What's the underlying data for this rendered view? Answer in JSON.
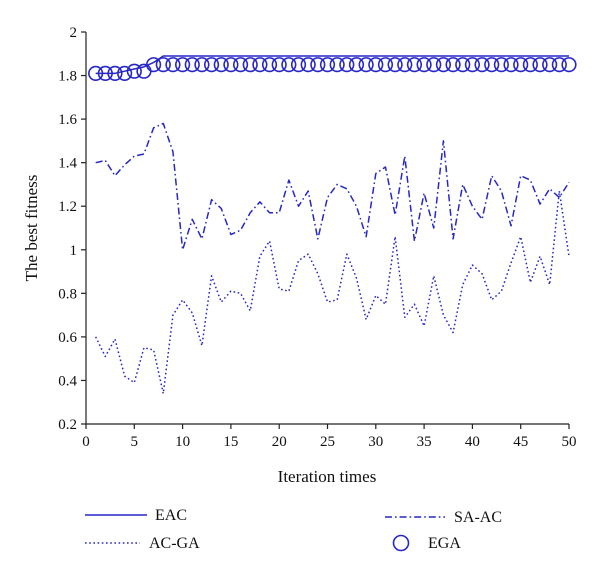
{
  "chart_data": {
    "type": "line",
    "xlabel": "Iteration times",
    "ylabel": "The best fitness",
    "xlim": [
      0,
      50
    ],
    "ylim": [
      0.2,
      2
    ],
    "xticks": [
      0,
      5,
      10,
      15,
      20,
      25,
      30,
      35,
      40,
      45,
      50
    ],
    "yticks": [
      0.2,
      0.4,
      0.6,
      0.8,
      1,
      1.2,
      1.4,
      1.6,
      1.8,
      2
    ],
    "grid": false,
    "legend_position": "bottom",
    "color": "#2727c8",
    "x": [
      1,
      2,
      3,
      4,
      5,
      6,
      7,
      8,
      9,
      10,
      11,
      12,
      13,
      14,
      15,
      16,
      17,
      18,
      19,
      20,
      21,
      22,
      23,
      24,
      25,
      26,
      27,
      28,
      29,
      30,
      31,
      32,
      33,
      34,
      35,
      36,
      37,
      38,
      39,
      40,
      41,
      42,
      43,
      44,
      45,
      46,
      47,
      48,
      49,
      50
    ],
    "series": [
      {
        "name": "EAC",
        "style": "solid",
        "values": [
          1.81,
          1.81,
          1.81,
          1.82,
          1.83,
          1.84,
          1.86,
          1.89,
          1.89,
          1.89,
          1.89,
          1.89,
          1.89,
          1.89,
          1.89,
          1.89,
          1.89,
          1.89,
          1.89,
          1.89,
          1.89,
          1.89,
          1.89,
          1.89,
          1.89,
          1.89,
          1.89,
          1.89,
          1.89,
          1.89,
          1.89,
          1.89,
          1.89,
          1.89,
          1.89,
          1.89,
          1.89,
          1.89,
          1.89,
          1.89,
          1.89,
          1.89,
          1.89,
          1.89,
          1.89,
          1.89,
          1.89,
          1.89,
          1.89,
          1.89
        ]
      },
      {
        "name": "SA-AC",
        "style": "dashdot",
        "values": [
          1.4,
          1.41,
          1.34,
          1.39,
          1.43,
          1.44,
          1.56,
          1.58,
          1.45,
          1.0,
          1.14,
          1.05,
          1.23,
          1.19,
          1.07,
          1.09,
          1.17,
          1.22,
          1.17,
          1.17,
          1.32,
          1.2,
          1.27,
          1.05,
          1.24,
          1.3,
          1.28,
          1.2,
          1.06,
          1.35,
          1.38,
          1.16,
          1.43,
          1.04,
          1.26,
          1.1,
          1.5,
          1.05,
          1.3,
          1.2,
          1.14,
          1.34,
          1.27,
          1.11,
          1.34,
          1.32,
          1.21,
          1.28,
          1.24,
          1.31
        ]
      },
      {
        "name": "AC-GA",
        "style": "dotted",
        "values": [
          0.6,
          0.51,
          0.59,
          0.42,
          0.39,
          0.55,
          0.54,
          0.34,
          0.7,
          0.77,
          0.71,
          0.56,
          0.88,
          0.76,
          0.81,
          0.8,
          0.72,
          0.97,
          1.04,
          0.82,
          0.81,
          0.95,
          0.98,
          0.89,
          0.76,
          0.77,
          0.98,
          0.87,
          0.68,
          0.79,
          0.75,
          1.06,
          0.69,
          0.75,
          0.65,
          0.88,
          0.7,
          0.62,
          0.84,
          0.93,
          0.89,
          0.77,
          0.81,
          0.94,
          1.06,
          0.85,
          0.97,
          0.84,
          1.27,
          0.97
        ]
      },
      {
        "name": "EGA",
        "style": "circle-markers",
        "values": [
          1.81,
          1.81,
          1.81,
          1.81,
          1.82,
          1.82,
          1.85,
          1.85,
          1.85,
          1.85,
          1.85,
          1.85,
          1.85,
          1.85,
          1.85,
          1.85,
          1.85,
          1.85,
          1.85,
          1.85,
          1.85,
          1.85,
          1.85,
          1.85,
          1.85,
          1.85,
          1.85,
          1.85,
          1.85,
          1.85,
          1.85,
          1.85,
          1.85,
          1.85,
          1.85,
          1.85,
          1.85,
          1.85,
          1.85,
          1.85,
          1.85,
          1.85,
          1.85,
          1.85,
          1.85,
          1.85,
          1.85,
          1.85,
          1.85,
          1.85
        ]
      }
    ]
  }
}
